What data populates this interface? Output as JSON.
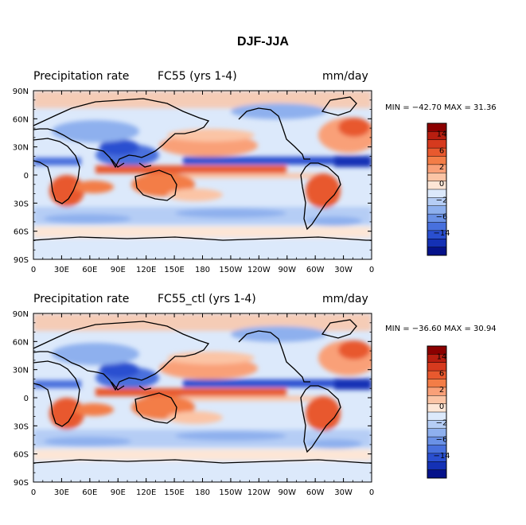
{
  "title": "DJF-JJA",
  "chart_data": [
    {
      "type": "heatmap",
      "variable": "Precipitation rate",
      "run": "FC55 (yrs 1-4)",
      "units": "mm/day",
      "min_text": "MIN = −42.70 MAX =  31.36",
      "min": -42.7,
      "max": 31.36,
      "x_ticks": [
        "0",
        "30E",
        "60E",
        "90E",
        "120E",
        "150E",
        "180",
        "150W",
        "120W",
        "90W",
        "60W",
        "30W",
        "0"
      ],
      "y_ticks": [
        "90N",
        "60N",
        "30N",
        "0",
        "30S",
        "60S",
        "90S"
      ],
      "colorbar_labels": [
        "14",
        "6",
        "2",
        "0",
        "−2",
        "−6",
        "−14"
      ]
    },
    {
      "type": "heatmap",
      "variable": "Precipitation rate",
      "run": "FC55_ctl (yrs 1-4)",
      "units": "mm/day",
      "min_text": "MIN = −36.60 MAX =  30.94",
      "min": -36.6,
      "max": 30.94,
      "x_ticks": [
        "0",
        "30E",
        "60E",
        "90E",
        "120E",
        "150E",
        "180",
        "150W",
        "120W",
        "90W",
        "60W",
        "30W",
        "0"
      ],
      "y_ticks": [
        "90N",
        "60N",
        "30N",
        "0",
        "30S",
        "60S",
        "90S"
      ],
      "colorbar_labels": [
        "14",
        "6",
        "2",
        "0",
        "−2",
        "−6",
        "−14"
      ]
    }
  ],
  "colors": {
    "levels": [
      "#8b0000",
      "#b81e10",
      "#d63a1e",
      "#e8592e",
      "#f37d47",
      "#f9a078",
      "#fbc4a5",
      "#fde6d6",
      "#dce9fb",
      "#b5cdf5",
      "#8eb0ee",
      "#6a91e6",
      "#4870dd",
      "#2a4fd0",
      "#1431b5",
      "#05128a"
    ],
    "land_outline": "#000000",
    "background": "#dce9fb"
  }
}
